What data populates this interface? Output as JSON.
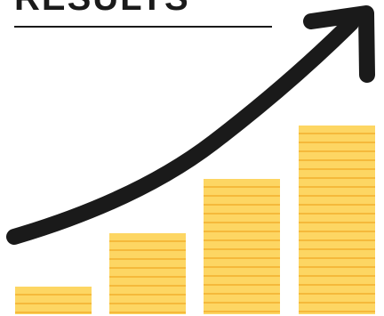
{
  "heading": {
    "text": "RESULTS"
  },
  "colors": {
    "coin_fill": "#FDD663",
    "coin_stripe": "#F5B93B",
    "coin_outline": "#F2B236",
    "arrow": "#1a1a1a",
    "text": "#1a1a1a"
  },
  "illustration": {
    "icon": "growth-arrow-coin-stacks",
    "stacks": 4
  }
}
